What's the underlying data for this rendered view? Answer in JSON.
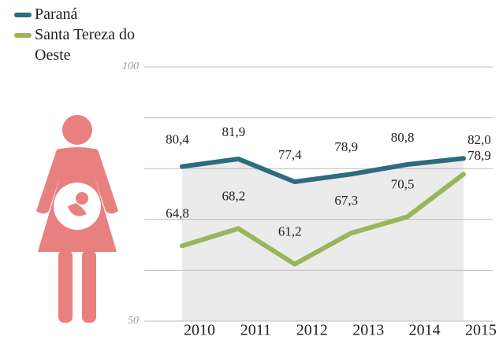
{
  "chart_data": {
    "type": "line",
    "categories": [
      "2010",
      "2011",
      "2012",
      "2013",
      "2014",
      "2015"
    ],
    "series": [
      {
        "name": "Paraná",
        "color": "#2f6b80",
        "values": [
          80.4,
          81.9,
          77.4,
          78.9,
          80.8,
          82.0
        ],
        "value_labels": [
          "80,4",
          "81,9",
          "77,4",
          "78,9",
          "80,8",
          "82,0"
        ]
      },
      {
        "name": "Santa Tereza do Oeste",
        "color": "#9ab55a",
        "values": [
          64.8,
          68.2,
          61.2,
          67.3,
          70.5,
          78.9
        ],
        "value_labels": [
          "64,8",
          "68,2",
          "61,2",
          "67,3",
          "70,5",
          "78,9"
        ]
      }
    ],
    "ylim": [
      50,
      100
    ],
    "yticks": [
      50,
      100
    ],
    "minor_yticks": [
      60,
      70,
      80,
      90
    ],
    "grid": true,
    "legend": "top-left",
    "area_fill": "#ebebeb"
  }
}
